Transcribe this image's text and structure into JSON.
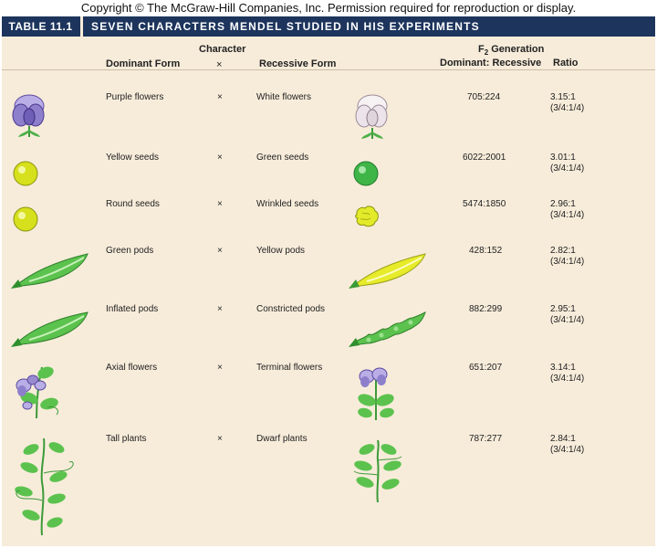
{
  "copyright": "Copyright © The McGraw-Hill Companies, Inc. Permission required for reproduction or display.",
  "table": {
    "label": "TABLE 11.1",
    "title": "SEVEN CHARACTERS MENDEL STUDIED IN HIS EXPERIMENTS"
  },
  "headers": {
    "character": "Character",
    "dominant": "Dominant Form",
    "cross": "×",
    "recessive": "Recessive Form",
    "f2_prefix": "F",
    "f2_sub": "2",
    "f2_suffix": " Generation",
    "dom_rec": "Dominant: Recessive",
    "ratio": "Ratio"
  },
  "rows": [
    {
      "dominant": "Purple flowers",
      "cross": "×",
      "recessive": "White flowers",
      "counts": "705:224",
      "ratio": "3.15:1",
      "expected": "(3/4:1/4)"
    },
    {
      "dominant": "Yellow seeds",
      "cross": "×",
      "recessive": "Green seeds",
      "counts": "6022:2001",
      "ratio": "3.01:1",
      "expected": "(3/4:1/4)"
    },
    {
      "dominant": "Round seeds",
      "cross": "×",
      "recessive": "Wrinkled seeds",
      "counts": "5474:1850",
      "ratio": "2.96:1",
      "expected": "(3/4:1/4)"
    },
    {
      "dominant": "Green pods",
      "cross": "×",
      "recessive": "Yellow pods",
      "counts": "428:152",
      "ratio": "2.82:1",
      "expected": "(3/4:1/4)"
    },
    {
      "dominant": "Inflated pods",
      "cross": "×",
      "recessive": "Constricted pods",
      "counts": "882:299",
      "ratio": "2.95:1",
      "expected": "(3/4:1/4)"
    },
    {
      "dominant": "Axial flowers",
      "cross": "×",
      "recessive": "Terminal flowers",
      "counts": "651:207",
      "ratio": "3.14:1",
      "expected": "(3/4:1/4)"
    },
    {
      "dominant": "Tall plants",
      "cross": "×",
      "recessive": "Dwarf plants",
      "counts": "787:277",
      "ratio": "2.84:1",
      "expected": "(3/4:1/4)"
    }
  ],
  "colors": {
    "title_bar": "#1d355d",
    "panel": "#f7ecda",
    "purple": "#9a8bd0",
    "yellow": "#d9e21e",
    "green": "#3fb548"
  }
}
